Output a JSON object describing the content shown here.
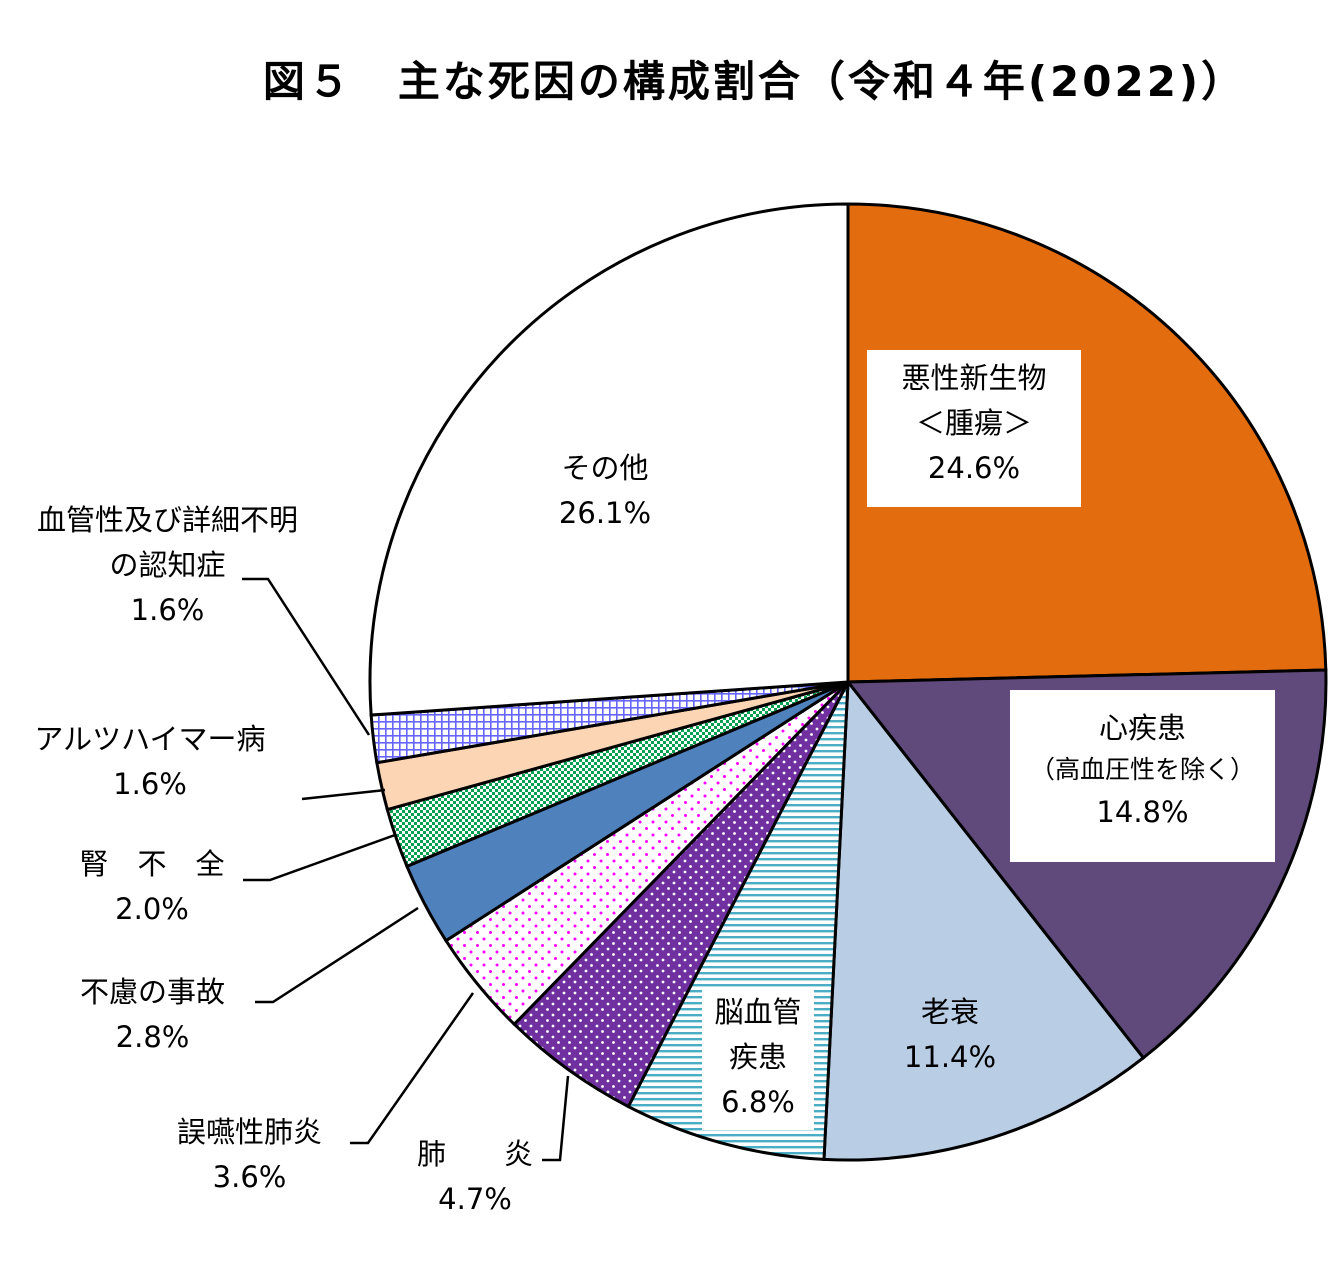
{
  "title": "図５　主な死因の構成割合（令和４年(2022)）",
  "chart_data": {
    "type": "pie",
    "start": "12 o'clock, clockwise",
    "slices": [
      {
        "name": "悪性新生物＜腫瘍＞",
        "line1": "悪性新生物",
        "line2": "＜腫瘍＞",
        "value": 24.6,
        "pct": "24.6%",
        "color": "#e36c0e",
        "pattern": "solid"
      },
      {
        "name": "心疾患（高血圧性を除く）",
        "line1": "心疾患",
        "line2": "（高血圧性を除く）",
        "value": 14.8,
        "pct": "14.8%",
        "color": "#604a7b",
        "pattern": "solid"
      },
      {
        "name": "老衰",
        "line1": "老衰",
        "value": 11.4,
        "pct": "11.4%",
        "color": "#b9cde5",
        "pattern": "solid"
      },
      {
        "name": "脳血管疾患",
        "line1": "脳血管",
        "line2": "疾患",
        "value": 6.8,
        "pct": "6.8%",
        "color": "#4bacc6",
        "pattern": "horizontal-lines"
      },
      {
        "name": "肺炎",
        "line1": "肺　　炎",
        "value": 4.7,
        "pct": "4.7%",
        "color": "#7030a0",
        "pattern": "dots-on-dark"
      },
      {
        "name": "誤嚥性肺炎",
        "line1": "誤嚥性肺炎",
        "value": 3.6,
        "pct": "3.6%",
        "color": "#ff00ff",
        "pattern": "dots"
      },
      {
        "name": "不慮の事故",
        "line1": "不慮の事故",
        "value": 2.8,
        "pct": "2.8%",
        "color": "#4f81bd",
        "pattern": "solid"
      },
      {
        "name": "腎不全",
        "line1": "腎　不　全",
        "value": 2.0,
        "pct": "2.0%",
        "color": "#00a050",
        "pattern": "diagonal-check"
      },
      {
        "name": "アルツハイマー病",
        "line1": "アルツハイマー病",
        "value": 1.6,
        "pct": "1.6%",
        "color": "#fcd5b5",
        "pattern": "solid"
      },
      {
        "name": "血管性及び詳細不明の認知症",
        "line1": "血管性及び詳細不明",
        "line2": "の認知症",
        "value": 1.6,
        "pct": "1.6%",
        "color": "#6666ff",
        "pattern": "grid"
      },
      {
        "name": "その他",
        "line1": "その他",
        "value": 26.1,
        "pct": "26.1%",
        "color": "#ffffff",
        "pattern": "solid"
      }
    ]
  }
}
